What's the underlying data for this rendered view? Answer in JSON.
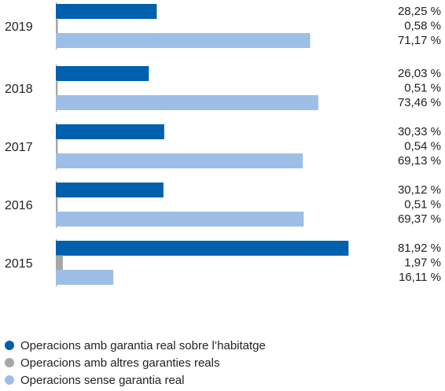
{
  "chart_data": {
    "type": "bar",
    "orientation": "horizontal",
    "categories": [
      "2019",
      "2018",
      "2017",
      "2016",
      "2015"
    ],
    "series": [
      {
        "name": "Operacions amb garantia real sobre l’habitatge",
        "color": "#0060ae",
        "values": [
          28.25,
          26.03,
          30.33,
          30.12,
          81.92
        ],
        "labels": [
          "28,25 %",
          "26,03 %",
          "30,33 %",
          "30,12 %",
          "81,92 %"
        ]
      },
      {
        "name": "Operacions amb altres garanties reals",
        "color": "#a6a6a6",
        "values": [
          0.58,
          0.51,
          0.54,
          0.51,
          1.97
        ],
        "labels": [
          "0,58 %",
          "0,51 %",
          "0,54 %",
          "0,51 %",
          "1,97 %"
        ]
      },
      {
        "name": "Operacions sense garantia real",
        "color": "#9dbfe7",
        "values": [
          71.17,
          73.46,
          69.13,
          69.37,
          16.11
        ],
        "labels": [
          "71,17 %",
          "73,46 %",
          "69,13 %",
          "69,37 %",
          "16,11 %"
        ]
      }
    ],
    "xlim": [
      0,
      85
    ],
    "legend_position": "bottom",
    "grid": false
  }
}
